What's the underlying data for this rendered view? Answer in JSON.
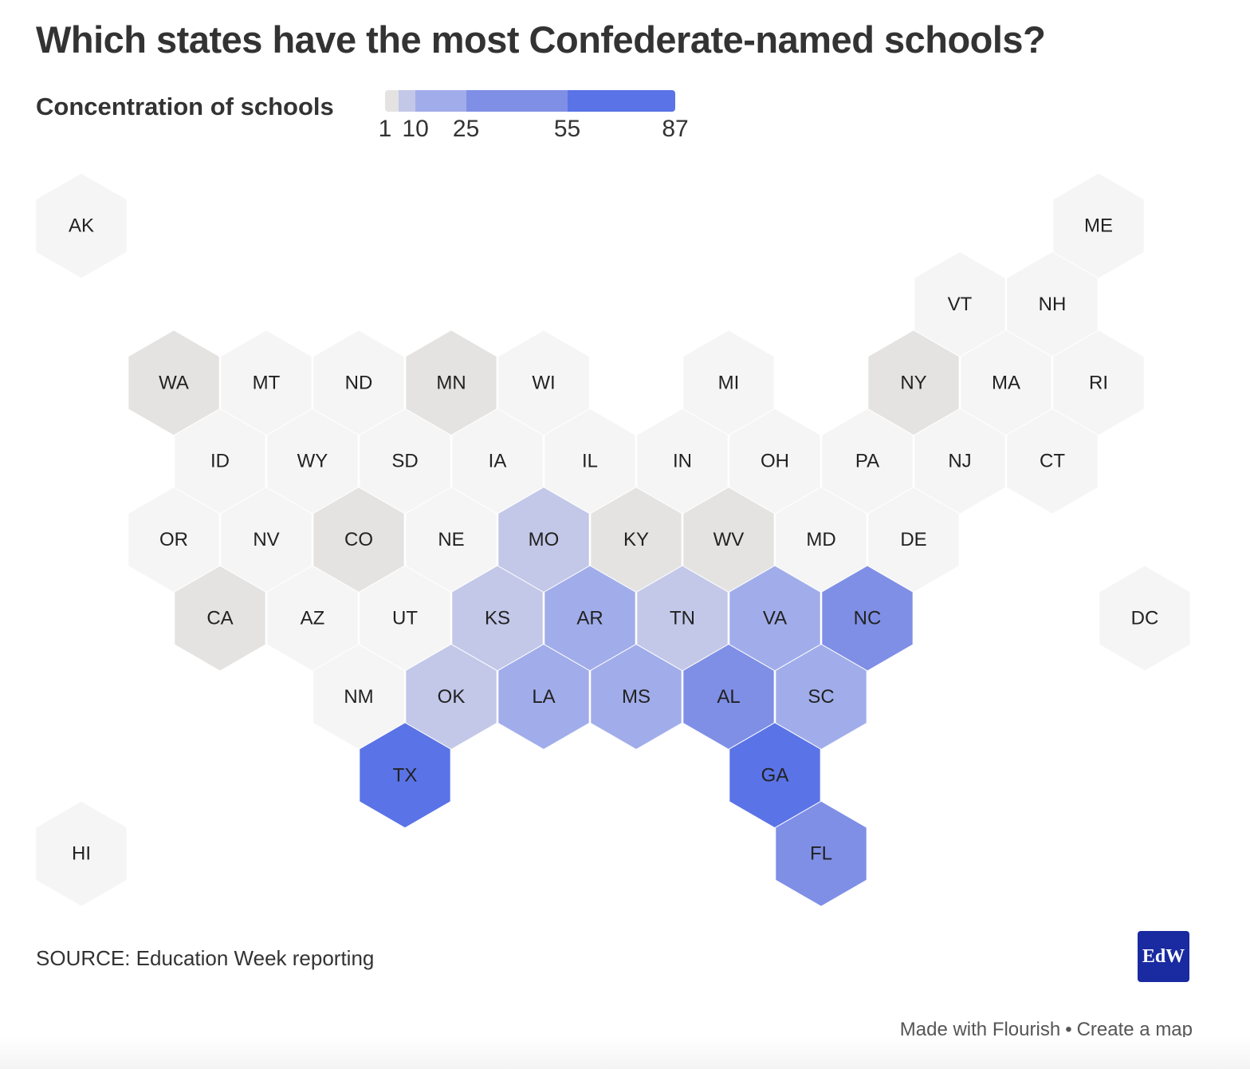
{
  "title": "Which states have the most Confederate-named schools?",
  "legend": {
    "title": "Concentration of schools",
    "ticks": [
      1,
      10,
      25,
      55,
      87
    ],
    "tick_labels": [
      "1",
      "10",
      "25",
      "55",
      "87"
    ],
    "colors": [
      "#e4e3e2",
      "#c3c8e8",
      "#a1adea",
      "#7f8fe6",
      "#5a73e6"
    ]
  },
  "no_data_color": "#f5f5f5",
  "states": [
    {
      "abbr": "AK",
      "row": 0,
      "col": 0,
      "cat": -1
    },
    {
      "abbr": "ME",
      "row": 0,
      "col": 11,
      "cat": -1
    },
    {
      "abbr": "VT",
      "row": 1,
      "col": 9.5,
      "cat": -1
    },
    {
      "abbr": "NH",
      "row": 1,
      "col": 10.5,
      "cat": -1
    },
    {
      "abbr": "WA",
      "row": 2,
      "col": 1,
      "cat": 0
    },
    {
      "abbr": "MT",
      "row": 2,
      "col": 2,
      "cat": -1
    },
    {
      "abbr": "ND",
      "row": 2,
      "col": 3,
      "cat": -1
    },
    {
      "abbr": "MN",
      "row": 2,
      "col": 4,
      "cat": 0
    },
    {
      "abbr": "WI",
      "row": 2,
      "col": 5,
      "cat": -1
    },
    {
      "abbr": "MI",
      "row": 2,
      "col": 7,
      "cat": -1
    },
    {
      "abbr": "NY",
      "row": 2,
      "col": 9,
      "cat": 0
    },
    {
      "abbr": "MA",
      "row": 2,
      "col": 10,
      "cat": -1
    },
    {
      "abbr": "RI",
      "row": 2,
      "col": 11,
      "cat": -1
    },
    {
      "abbr": "ID",
      "row": 3,
      "col": 1.5,
      "cat": -1
    },
    {
      "abbr": "WY",
      "row": 3,
      "col": 2.5,
      "cat": -1
    },
    {
      "abbr": "SD",
      "row": 3,
      "col": 3.5,
      "cat": -1
    },
    {
      "abbr": "IA",
      "row": 3,
      "col": 4.5,
      "cat": -1
    },
    {
      "abbr": "IL",
      "row": 3,
      "col": 5.5,
      "cat": -1
    },
    {
      "abbr": "IN",
      "row": 3,
      "col": 6.5,
      "cat": -1
    },
    {
      "abbr": "OH",
      "row": 3,
      "col": 7.5,
      "cat": -1
    },
    {
      "abbr": "PA",
      "row": 3,
      "col": 8.5,
      "cat": -1
    },
    {
      "abbr": "NJ",
      "row": 3,
      "col": 9.5,
      "cat": -1
    },
    {
      "abbr": "CT",
      "row": 3,
      "col": 10.5,
      "cat": -1
    },
    {
      "abbr": "OR",
      "row": 4,
      "col": 1,
      "cat": -1
    },
    {
      "abbr": "NV",
      "row": 4,
      "col": 2,
      "cat": -1
    },
    {
      "abbr": "CO",
      "row": 4,
      "col": 3,
      "cat": 0
    },
    {
      "abbr": "NE",
      "row": 4,
      "col": 4,
      "cat": -1
    },
    {
      "abbr": "MO",
      "row": 4,
      "col": 5,
      "cat": 1
    },
    {
      "abbr": "KY",
      "row": 4,
      "col": 6,
      "cat": 0
    },
    {
      "abbr": "WV",
      "row": 4,
      "col": 7,
      "cat": 0
    },
    {
      "abbr": "MD",
      "row": 4,
      "col": 8,
      "cat": -1
    },
    {
      "abbr": "DE",
      "row": 4,
      "col": 9,
      "cat": -1
    },
    {
      "abbr": "CA",
      "row": 5,
      "col": 1.5,
      "cat": 0
    },
    {
      "abbr": "AZ",
      "row": 5,
      "col": 2.5,
      "cat": -1
    },
    {
      "abbr": "UT",
      "row": 5,
      "col": 3.5,
      "cat": -1
    },
    {
      "abbr": "KS",
      "row": 5,
      "col": 4.5,
      "cat": 1
    },
    {
      "abbr": "AR",
      "row": 5,
      "col": 5.5,
      "cat": 2
    },
    {
      "abbr": "TN",
      "row": 5,
      "col": 6.5,
      "cat": 1
    },
    {
      "abbr": "VA",
      "row": 5,
      "col": 7.5,
      "cat": 2
    },
    {
      "abbr": "NC",
      "row": 5,
      "col": 8.5,
      "cat": 3
    },
    {
      "abbr": "DC",
      "row": 5,
      "col": 11.5,
      "cat": -1
    },
    {
      "abbr": "NM",
      "row": 6,
      "col": 3,
      "cat": -1
    },
    {
      "abbr": "OK",
      "row": 6,
      "col": 4,
      "cat": 1
    },
    {
      "abbr": "LA",
      "row": 6,
      "col": 5,
      "cat": 2
    },
    {
      "abbr": "MS",
      "row": 6,
      "col": 6,
      "cat": 2
    },
    {
      "abbr": "AL",
      "row": 6,
      "col": 7,
      "cat": 3
    },
    {
      "abbr": "SC",
      "row": 6,
      "col": 8,
      "cat": 2
    },
    {
      "abbr": "TX",
      "row": 7,
      "col": 3.5,
      "cat": 4
    },
    {
      "abbr": "GA",
      "row": 7,
      "col": 7.5,
      "cat": 4
    },
    {
      "abbr": "HI",
      "row": 8,
      "col": 0,
      "cat": -1
    },
    {
      "abbr": "FL",
      "row": 8,
      "col": 8,
      "cat": 3
    }
  ],
  "source": "SOURCE: Education Week reporting",
  "logo": {
    "text": "EdW",
    "color": "#1a2aa0"
  },
  "credit": {
    "made_with": "Made with Flourish",
    "separator": "•",
    "create": "Create a map"
  }
}
